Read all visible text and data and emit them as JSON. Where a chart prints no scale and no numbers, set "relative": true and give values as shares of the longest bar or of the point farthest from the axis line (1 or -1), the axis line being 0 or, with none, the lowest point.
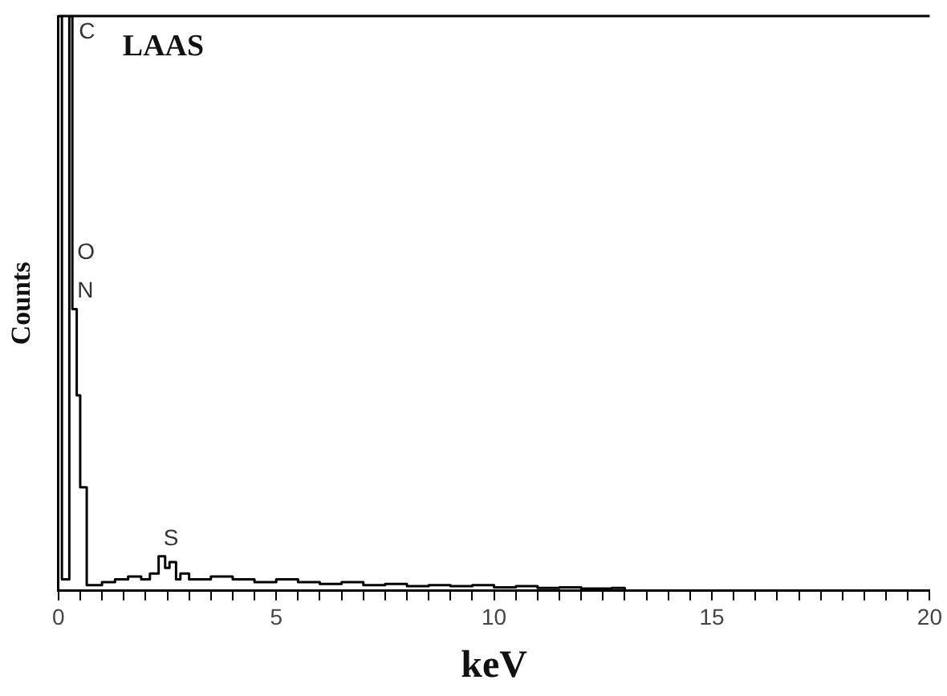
{
  "chart_data": {
    "type": "step",
    "relative": true,
    "xlabel": "keV",
    "ylabel": "Counts",
    "x": [
      0,
      0.08,
      0.25,
      0.32,
      0.42,
      0.5,
      0.65,
      0.7,
      1.0,
      1.3,
      1.6,
      1.9,
      2.1,
      2.3,
      2.45,
      2.55,
      2.7,
      2.8,
      3.0,
      3.5,
      4.0,
      4.5,
      5.0,
      5.5,
      6.0,
      6.5,
      7.0,
      7.5,
      8.0,
      8.5,
      9.0,
      9.5,
      10.0,
      10.5,
      11.0,
      11.5,
      12.0,
      12.7,
      13.0
    ],
    "series": [
      {
        "color": "#000000",
        "values": [
          1,
          0.02,
          1,
          0.49,
          0.34,
          0.18,
          0.01,
          0.01,
          0.015,
          0.02,
          0.025,
          0.02,
          0.03,
          0.06,
          0.04,
          0.05,
          0.02,
          0.03,
          0.02,
          0.025,
          0.02,
          0.015,
          0.02,
          0.015,
          0.012,
          0.015,
          0.01,
          0.012,
          0.008,
          0.01,
          0.008,
          0.01,
          0.006,
          0.008,
          0.005,
          0.006,
          0.004,
          0.005,
          0
        ]
      }
    ],
    "xlim": [
      0,
      20
    ],
    "xticks": [
      0,
      {
        "value": 0.5,
        "label": null
      },
      {
        "value": 1,
        "label": null
      },
      {
        "value": 1.5,
        "label": null
      },
      {
        "value": 2,
        "label": null
      },
      {
        "value": 2.5,
        "label": null
      },
      {
        "value": 3,
        "label": null
      },
      {
        "value": 3.5,
        "label": null
      },
      {
        "value": 4,
        "label": null
      },
      {
        "value": 4.5,
        "label": null
      },
      5,
      {
        "value": 5.5,
        "label": null
      },
      {
        "value": 6,
        "label": null
      },
      {
        "value": 6.5,
        "label": null
      },
      {
        "value": 7,
        "label": null
      },
      {
        "value": 7.5,
        "label": null
      },
      {
        "value": 8,
        "label": null
      },
      {
        "value": 8.5,
        "label": null
      },
      {
        "value": 9,
        "label": null
      },
      {
        "value": 9.5,
        "label": null
      },
      10,
      {
        "value": 10.5,
        "label": null
      },
      {
        "value": 11,
        "label": null
      },
      {
        "value": 11.5,
        "label": null
      },
      {
        "value": 12,
        "label": null
      },
      {
        "value": 12.5,
        "label": null
      },
      {
        "value": 13,
        "label": null
      },
      {
        "value": 13.5,
        "label": null
      },
      {
        "value": 14,
        "label": null
      },
      {
        "value": 14.5,
        "label": null
      },
      15,
      {
        "value": 15.5,
        "label": null
      },
      {
        "value": 16,
        "label": null
      },
      {
        "value": 16.5,
        "label": null
      },
      {
        "value": 17,
        "label": null
      },
      {
        "value": 17.5,
        "label": null
      },
      {
        "value": 18,
        "label": null
      },
      {
        "value": 18.5,
        "label": null
      },
      {
        "value": 19,
        "label": null
      },
      {
        "value": 19.5,
        "label": null
      },
      20
    ],
    "annotations": [
      "LAAS",
      {
        "text": "C",
        "x": 0.25,
        "y": 1
      },
      {
        "text": "N",
        "x": 0.32,
        "y": 0.49
      },
      {
        "text": "O",
        "x": 0.32,
        "y": 0.49
      },
      {
        "text": "S",
        "x": 2.3,
        "y": 0.06
      }
    ],
    "legend": false
  }
}
